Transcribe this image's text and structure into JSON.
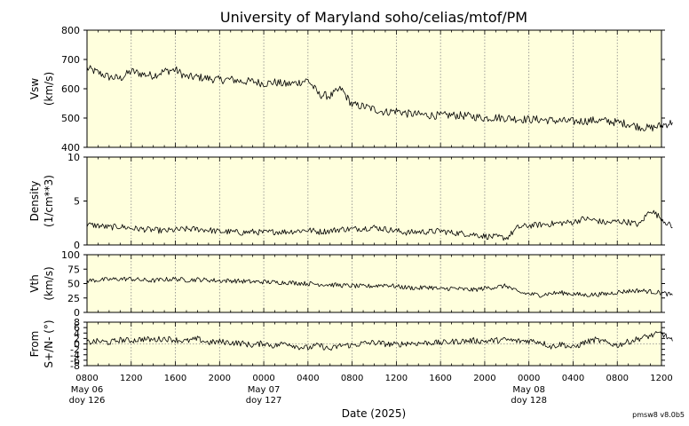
{
  "title": "University of Maryland  soho/celias/mtof/PM",
  "version": "pmsw8 v8.0b5",
  "xlabel": "Date (2025)",
  "x_tick_labels": [
    "0800",
    "1200",
    "1600",
    "2000",
    "0000",
    "0400",
    "0800",
    "1200",
    "1600",
    "2000",
    "0000",
    "0400",
    "0800",
    "1200"
  ],
  "date_labels": [
    {
      "date": "May 06",
      "doy": "doy 126",
      "tick_index": 0
    },
    {
      "date": "May 07",
      "doy": "doy 127",
      "tick_index": 4
    },
    {
      "date": "May 08",
      "doy": "doy 128",
      "tick_index": 10
    }
  ],
  "colors": {
    "panel_bg": "#ffffdd",
    "line": "#000000",
    "grid": "#888888"
  },
  "chart_data": [
    {
      "type": "line",
      "ylabel": [
        "Vsw",
        "(km/s)"
      ],
      "ylim": [
        400,
        800
      ],
      "yticks": [
        400,
        500,
        600,
        700,
        800
      ],
      "x_hours": [
        0,
        1,
        2,
        3,
        4,
        5,
        6,
        7,
        8,
        9,
        10,
        11,
        12,
        13,
        14,
        15,
        16,
        17,
        18,
        19,
        20,
        21,
        22,
        23,
        24,
        25,
        26,
        27,
        28,
        29,
        30,
        31,
        32,
        33,
        34,
        35,
        36,
        37,
        38,
        39,
        40,
        41,
        42,
        43,
        44,
        45,
        46,
        47,
        48,
        49,
        50,
        51,
        52,
        53
      ],
      "values": [
        670,
        655,
        640,
        635,
        660,
        650,
        645,
        660,
        665,
        640,
        640,
        635,
        630,
        632,
        625,
        625,
        618,
        622,
        615,
        620,
        630,
        580,
        575,
        600,
        545,
        540,
        530,
        520,
        525,
        515,
        512,
        510,
        508,
        510,
        508,
        505,
        500,
        502,
        500,
        497,
        495,
        495,
        492,
        490,
        488,
        490,
        492,
        490,
        485,
        480,
        470,
        465,
        475,
        485
      ]
    },
    {
      "type": "line",
      "ylabel": [
        "Density",
        "(1/cm**3)"
      ],
      "ylim": [
        0,
        10
      ],
      "yticks": [
        0,
        5,
        10
      ],
      "x_hours": [
        0,
        1,
        2,
        3,
        4,
        5,
        6,
        7,
        8,
        9,
        10,
        11,
        12,
        13,
        14,
        15,
        16,
        17,
        18,
        19,
        20,
        21,
        22,
        23,
        24,
        25,
        26,
        27,
        28,
        29,
        30,
        31,
        32,
        33,
        34,
        35,
        36,
        37,
        38,
        39,
        40,
        41,
        42,
        43,
        44,
        45,
        46,
        47,
        48,
        49,
        50,
        51,
        52,
        53
      ],
      "values": [
        2.3,
        2.2,
        2.0,
        2.1,
        1.9,
        1.8,
        1.7,
        1.6,
        1.7,
        1.8,
        1.8,
        1.7,
        1.5,
        1.5,
        1.4,
        1.5,
        1.4,
        1.5,
        1.5,
        1.6,
        1.7,
        1.5,
        1.6,
        1.8,
        1.8,
        1.9,
        2.0,
        1.8,
        1.6,
        1.4,
        1.5,
        1.5,
        1.6,
        1.4,
        1.3,
        1.2,
        1.0,
        0.9,
        0.8,
        2.0,
        2.2,
        2.3,
        2.4,
        2.5,
        2.6,
        3.0,
        2.8,
        2.5,
        2.7,
        2.6,
        2.3,
        4.0,
        3.0,
        2.0
      ]
    },
    {
      "type": "line",
      "ylabel": [
        "Vth",
        "(km/s)"
      ],
      "ylim": [
        0,
        100
      ],
      "yticks": [
        0,
        25,
        50,
        75,
        100
      ],
      "x_hours": [
        0,
        1,
        2,
        3,
        4,
        5,
        6,
        7,
        8,
        9,
        10,
        11,
        12,
        13,
        14,
        15,
        16,
        17,
        18,
        19,
        20,
        21,
        22,
        23,
        24,
        25,
        26,
        27,
        28,
        29,
        30,
        31,
        32,
        33,
        34,
        35,
        36,
        37,
        38,
        39,
        40,
        41,
        42,
        43,
        44,
        45,
        46,
        47,
        48,
        49,
        50,
        51,
        52,
        53
      ],
      "values": [
        55,
        56,
        57,
        58,
        58,
        56,
        55,
        57,
        58,
        56,
        57,
        56,
        55,
        55,
        54,
        53,
        53,
        52,
        52,
        51,
        50,
        49,
        48,
        47,
        46,
        45,
        46,
        48,
        45,
        43,
        42,
        44,
        40,
        42,
        40,
        39,
        42,
        44,
        46,
        35,
        32,
        30,
        33,
        34,
        32,
        30,
        31,
        32,
        35,
        37,
        38,
        36,
        34,
        30
      ]
    },
    {
      "type": "line",
      "ylabel": [
        "From",
        "S+/N- (°)"
      ],
      "ylim": [
        -8,
        8
      ],
      "yticks": [
        -8,
        -6,
        -4,
        -2,
        0,
        2,
        4,
        6,
        8
      ],
      "x_hours": [
        0,
        1,
        2,
        3,
        4,
        5,
        6,
        7,
        8,
        9,
        10,
        11,
        12,
        13,
        14,
        15,
        16,
        17,
        18,
        19,
        20,
        21,
        22,
        23,
        24,
        25,
        26,
        27,
        28,
        29,
        30,
        31,
        32,
        33,
        34,
        35,
        36,
        37,
        38,
        39,
        40,
        41,
        42,
        43,
        44,
        45,
        46,
        47,
        48,
        49,
        50,
        51,
        52,
        53
      ],
      "values": [
        0.5,
        1.0,
        0.5,
        1.5,
        1.2,
        1.8,
        1.5,
        2.0,
        1.5,
        1.0,
        1.8,
        0.5,
        0.8,
        0.5,
        0.2,
        -0.5,
        0.3,
        -0.8,
        0.5,
        -1.0,
        -1.5,
        -0.5,
        -2.0,
        -0.5,
        -0.5,
        0.2,
        0.5,
        0.0,
        -0.3,
        0.3,
        0.2,
        0.5,
        0.4,
        0.8,
        1.0,
        1.2,
        1.0,
        1.3,
        1.5,
        1.0,
        1.2,
        0.8,
        -1.0,
        0.0,
        -1.5,
        0.5,
        1.5,
        0.5,
        -0.5,
        0.8,
        2.0,
        3.0,
        4.0,
        1.0
      ]
    }
  ]
}
